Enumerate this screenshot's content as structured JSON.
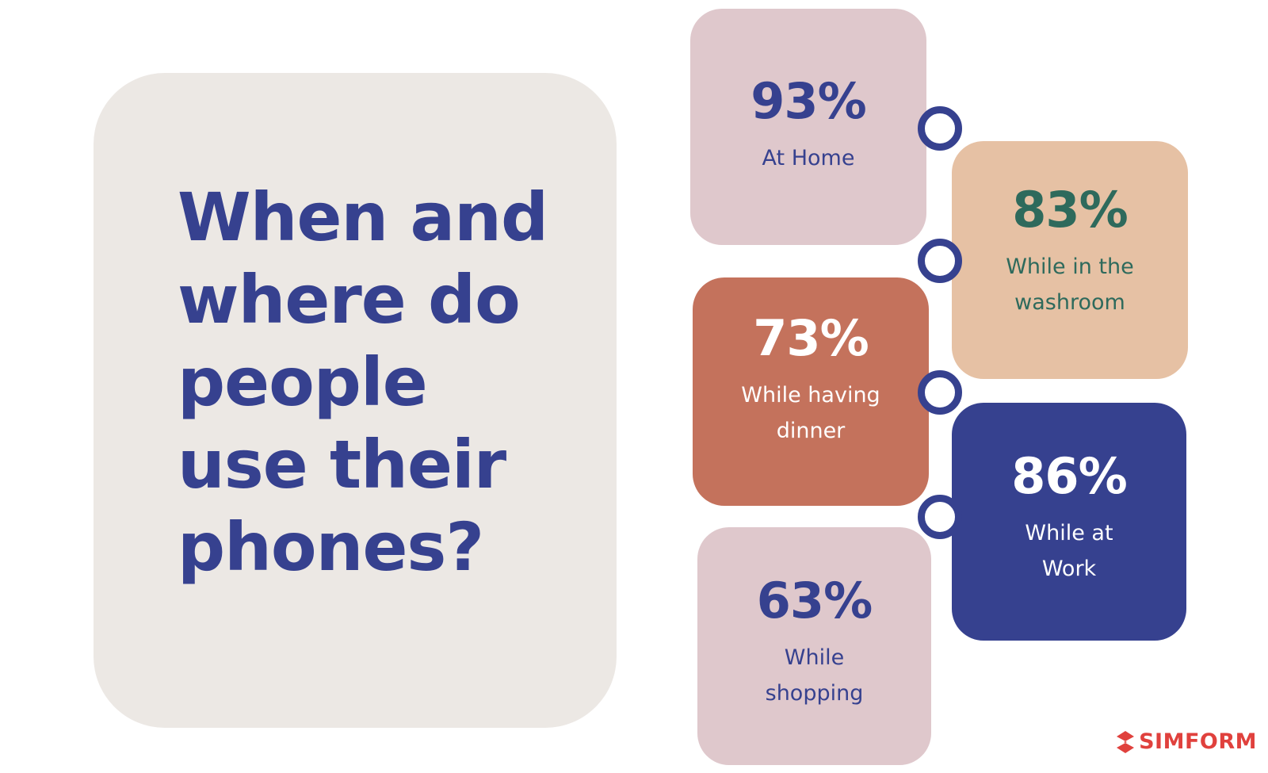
{
  "title": "When and\nwhere do\npeople\nuse their\nphones?",
  "stats": {
    "home": {
      "value": "93%",
      "label": "At Home"
    },
    "washroom": {
      "value": "83%",
      "label": "While in the\nwashroom"
    },
    "dinner": {
      "value": "73%",
      "label": "While having\ndinner"
    },
    "work": {
      "value": "86%",
      "label": "While at\nWork"
    },
    "shopping": {
      "value": "63%",
      "label": "While\nshopping"
    }
  },
  "brand": {
    "name": "SIMFORM",
    "icon": "simform-logo-icon"
  },
  "colors": {
    "navy": "#36418f",
    "title_card": "#ece8e4",
    "pink": "#dfc8cc",
    "peach": "#e6c1a4",
    "teal_text": "#2e6a5c",
    "terracotta": "#c4725c",
    "brand_red": "#e0413d"
  }
}
